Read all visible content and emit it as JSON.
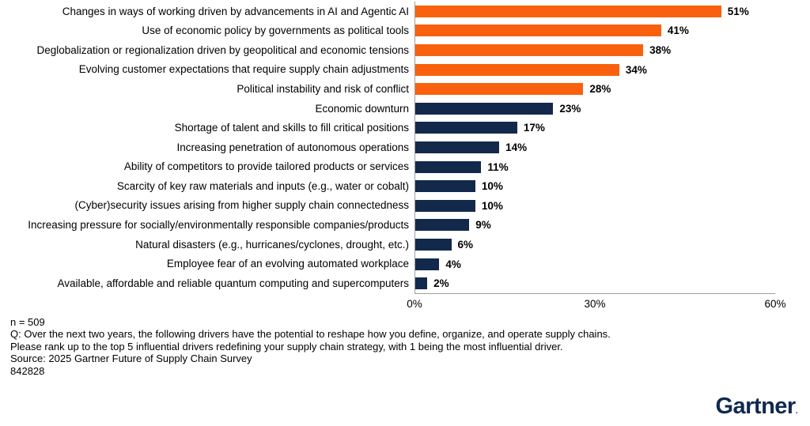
{
  "chart_data": {
    "type": "bar",
    "orientation": "horizontal",
    "categories": [
      "Changes in ways of working driven by advancements in AI and Agentic AI",
      "Use of economic policy by governments as political tools",
      "Deglobalization or regionalization driven by geopolitical and economic tensions",
      "Evolving customer expectations that require supply chain adjustments",
      "Political instability and risk of conflict",
      "Economic downturn",
      "Shortage of talent and skills to fill critical positions",
      "Increasing penetration of autonomous operations",
      "Ability of competitors to provide tailored products or services",
      "Scarcity of key raw materials and inputs (e.g., water or cobalt)",
      "(Cyber)security issues arising from higher supply chain connectedness",
      "Increasing pressure for socially/environmentally responsible companies/products",
      "Natural disasters (e.g., hurricanes/cyclones, drought, etc.)",
      "Employee fear of an evolving automated workplace",
      "Available, affordable and reliable quantum computing and supercomputers"
    ],
    "values": [
      51,
      41,
      38,
      34,
      28,
      23,
      17,
      14,
      11,
      10,
      10,
      9,
      6,
      4,
      2
    ],
    "value_suffix": "%",
    "xlim": [
      0,
      60
    ],
    "x_ticks": [
      {
        "label": "0%",
        "value": 0
      },
      {
        "label": "30%",
        "value": 30
      },
      {
        "label": "60%",
        "value": 60
      }
    ],
    "grid": false,
    "legend": false,
    "highlight_count": 5,
    "colors": {
      "highlight": "#F9610E",
      "default": "#12294B"
    }
  },
  "footer": {
    "sample_size": "n = 509",
    "question": "Q: Over the next two years, the following drivers have the potential to reshape how you define, organize, and operate supply chains.",
    "instruction": "Please rank up to the top 5 influential drivers redefining your supply chain strategy, with 1 being the most influential driver.",
    "source": "Source: 2025 Gartner Future of Supply Chain Survey",
    "document_number": "842828"
  },
  "branding": {
    "logo_text": "Gartner",
    "logo_mark": ".",
    "logo_color": "#10294E"
  }
}
